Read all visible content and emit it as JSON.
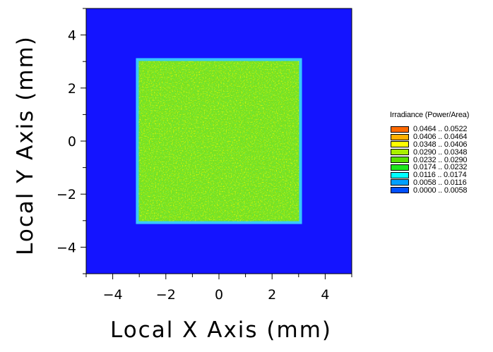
{
  "chart_data": {
    "type": "heatmap",
    "title": "",
    "xlabel": "Local X Axis (mm)",
    "ylabel": "Local Y Axis (mm)",
    "xlim": [
      -5,
      5
    ],
    "ylim": [
      -5,
      5
    ],
    "x_ticks": [
      -4,
      -2,
      0,
      2,
      4
    ],
    "y_ticks": [
      -4,
      -2,
      0,
      2,
      4
    ],
    "x_tick_labels": [
      "−4",
      "−2",
      "0",
      "2",
      "4"
    ],
    "y_tick_labels": [
      "−4",
      "−2",
      "0",
      "2",
      "4"
    ],
    "background_value_range": "0.0000 .. 0.0058",
    "illuminated_region": {
      "x_range": [
        -3.1,
        3.1
      ],
      "y_range": [
        -3.1,
        3.1
      ],
      "typical_value_range": "0.0232 .. 0.0348"
    },
    "legend": {
      "title": "Irradiance (Power/Area)",
      "placement": "right",
      "bins": [
        {
          "range": "0.0464 .. 0.0522",
          "color": "#ff6a00"
        },
        {
          "range": "0.0406 .. 0.0464",
          "color": "#ffb000"
        },
        {
          "range": "0.0348 .. 0.0406",
          "color": "#ffff00"
        },
        {
          "range": "0.0290 .. 0.0348",
          "color": "#a8f000"
        },
        {
          "range": "0.0232 .. 0.0290",
          "color": "#5ae000"
        },
        {
          "range": "0.0174 .. 0.0232",
          "color": "#1ee61e"
        },
        {
          "range": "0.0116 .. 0.0174",
          "color": "#00ffff"
        },
        {
          "range": "0.0058 .. 0.0116",
          "color": "#00a0ff"
        },
        {
          "range": "0.0000 .. 0.0058",
          "color": "#0050ff"
        }
      ]
    },
    "colors": {
      "background": "#1414ff",
      "edge": "#37c8ff",
      "bulk": "#7ae01e"
    }
  }
}
